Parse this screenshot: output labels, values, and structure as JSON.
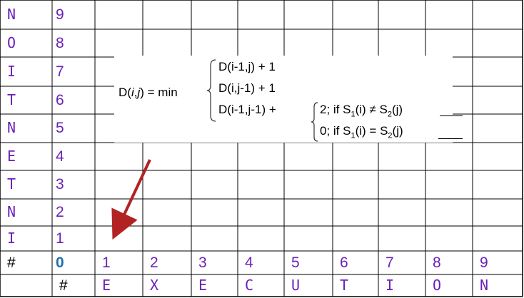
{
  "grid": {
    "row_labels": [
      "N",
      "O",
      "I",
      "T",
      "N",
      "E",
      "T",
      "N",
      "I",
      "#"
    ],
    "row_indices": [
      "9",
      "8",
      "7",
      "6",
      "5",
      "4",
      "3",
      "2",
      "1",
      "0"
    ],
    "col_indices": [
      "1",
      "2",
      "3",
      "4",
      "5",
      "6",
      "7",
      "8",
      "9"
    ],
    "col_labels": [
      "#",
      "E",
      "X",
      "E",
      "C",
      "U",
      "T",
      "I",
      "O",
      "N"
    ]
  },
  "formula": {
    "lhs": "D(",
    "lhs_i": "i",
    "lhs_comma": ",",
    "lhs_j": "j",
    "lhs_close": ") = min",
    "case1": "D(i-1,j) + 1",
    "case2": "D(i,j-1) + 1",
    "case3": "D(i-1,j-1) +",
    "sub1_val": "2;  if S",
    "sub1_s1": "1",
    "sub1_mid": "(i) ≠ S",
    "sub1_s2": "2",
    "sub1_end": "(j)",
    "sub2_val": "0;  if S",
    "sub2_s1": "1",
    "sub2_mid": "(i) = S",
    "sub2_s2": "2",
    "sub2_end": "(j)"
  },
  "colors": {
    "letters": "#6a21b8",
    "zero": "#1f6fb0",
    "arrow": "#b22222",
    "grid": "#000000"
  }
}
